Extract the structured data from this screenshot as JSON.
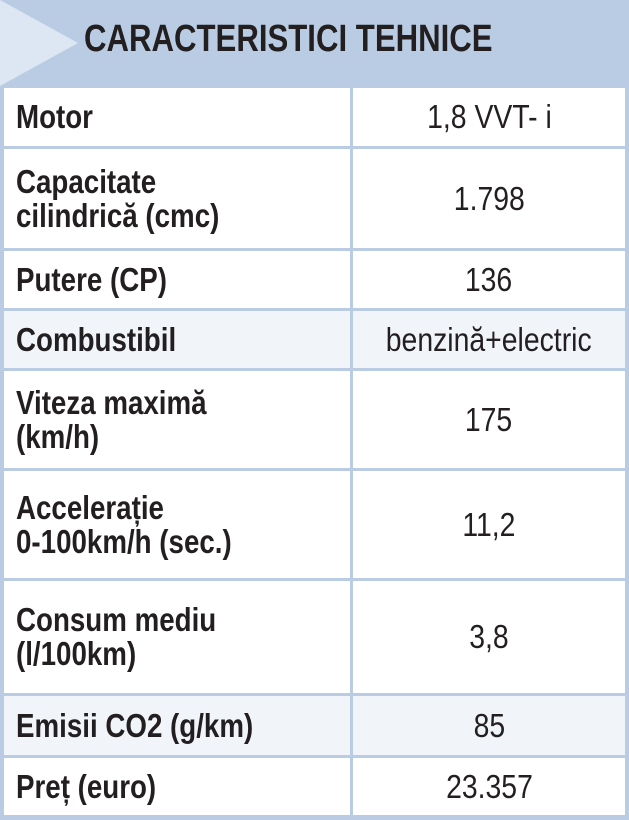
{
  "header": {
    "title": "CARACTERISTICI TEHNICE"
  },
  "table": {
    "rows": [
      [
        "Motor",
        "1,8 VVT- i"
      ],
      [
        "Capacitate\ncilindrică (cmc)",
        "1.798"
      ],
      [
        "Putere (CP)",
        "136"
      ],
      [
        "Combustibil",
        "benzină+electric"
      ],
      [
        "Viteza maximă\n(km/h)",
        "175"
      ],
      [
        "Accelerație\n0-100km/h (sec.)",
        "11,2"
      ],
      [
        "Consum mediu\n(l/100km)",
        "3,8"
      ],
      [
        "Emisii CO2 (g/km)",
        "85"
      ],
      [
        "Preț (euro)",
        "23.357"
      ]
    ]
  }
}
